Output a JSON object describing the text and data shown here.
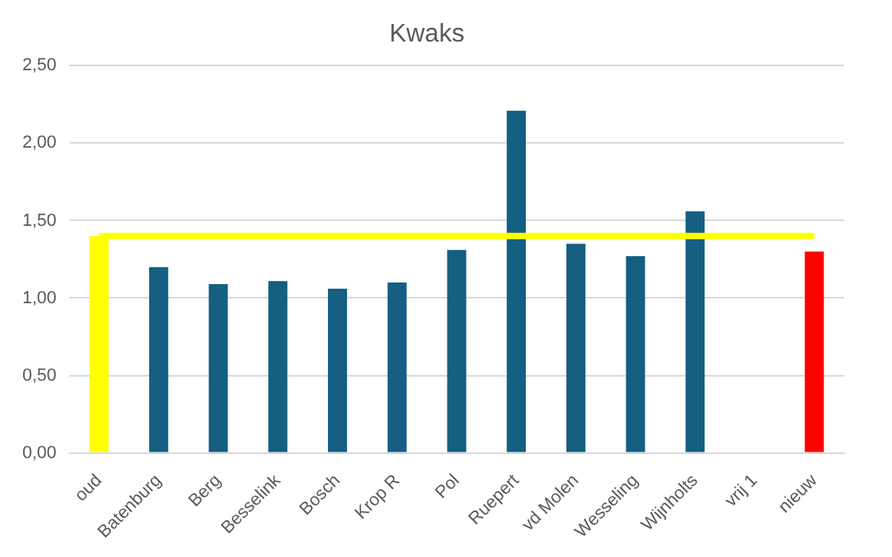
{
  "chart_data": {
    "type": "bar",
    "title": "Kwaks",
    "categories": [
      "oud",
      "Batenburg",
      "Berg",
      "Besselink",
      "Bosch",
      "Krop R",
      "Pol",
      "Ruepert",
      "vd Molen",
      "Wesseling",
      "Wijnholts",
      "vrij 1",
      "nieuw"
    ],
    "series": [
      {
        "colors": [
          "#ffff00",
          "#155f82",
          "#155f82",
          "#155f82",
          "#155f82",
          "#155f82",
          "#155f82",
          "#155f82",
          "#155f82",
          "#155f82",
          "#155f82",
          "#155f82",
          "#ff0000"
        ],
        "values": [
          1.4,
          1.2,
          1.09,
          1.11,
          1.06,
          1.1,
          1.31,
          2.21,
          1.35,
          1.27,
          1.56,
          null,
          1.3
        ]
      },
      {
        "type": "line",
        "color": "#ffff00",
        "values": [
          1.4,
          1.4,
          1.4,
          1.4,
          1.4,
          1.4,
          1.4,
          1.4,
          1.4,
          1.4,
          1.4,
          1.4,
          1.4
        ]
      }
    ],
    "ylim": [
      0,
      2.5
    ],
    "yticks": [
      {
        "value": 0,
        "label": "0,00"
      },
      {
        "value": 0.5,
        "label": "0,50"
      },
      {
        "value": 1,
        "label": "1,00"
      },
      {
        "value": 1.5,
        "label": "1,50"
      },
      {
        "value": 2,
        "label": "2,00"
      },
      {
        "value": 2.5,
        "label": "2,50"
      }
    ],
    "grid": "y",
    "legend": false,
    "marker": "none"
  }
}
